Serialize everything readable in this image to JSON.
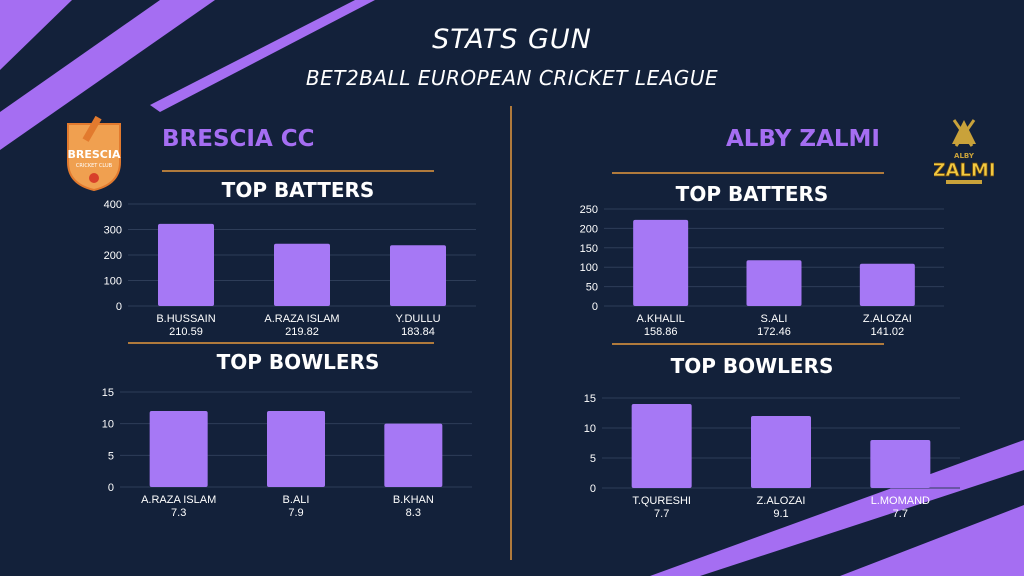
{
  "header": {
    "title": "STATS GUN",
    "subtitle": "BET2BALL EUROPEAN CRICKET LEAGUE"
  },
  "colors": {
    "background": "#13213a",
    "accent_purple": "#a56ef2",
    "bar": "#a678f5",
    "gold": "#b07a3c"
  },
  "teams": [
    {
      "name": "BRESCIA CC",
      "logo_text": "BRESCIA CRICKET CLUB",
      "logo_icon": "brescia-cricket-club-crest"
    },
    {
      "name": "ALBY ZALMI",
      "logo_text": "ALBY ZALMI",
      "logo_icon": "alby-zalmi-crest"
    }
  ],
  "chart_data": [
    {
      "type": "bar",
      "team": "BRESCIA CC",
      "title": "TOP BATTERS",
      "categories": [
        "B.HUSSAIN",
        "A.RAZA ISLAM",
        "Y.DULLU"
      ],
      "sublabels": [
        "210.59",
        "219.82",
        "183.84"
      ],
      "values": [
        322,
        244,
        238
      ],
      "ylim": [
        0,
        400
      ],
      "yticks": [
        0,
        100,
        200,
        300,
        400
      ],
      "grid": true,
      "legend": "none"
    },
    {
      "type": "bar",
      "team": "BRESCIA CC",
      "title": "TOP BOWLERS",
      "categories": [
        "A.RAZA ISLAM",
        "B.ALI",
        "B.KHAN"
      ],
      "sublabels": [
        "7.3",
        "7.9",
        "8.3"
      ],
      "values": [
        12,
        12,
        10
      ],
      "ylim": [
        0,
        15
      ],
      "yticks": [
        0,
        5,
        10,
        15
      ],
      "grid": true,
      "legend": "none"
    },
    {
      "type": "bar",
      "team": "ALBY ZALMI",
      "title": "TOP BATTERS",
      "categories": [
        "A.KHALIL",
        "S.ALI",
        "Z.ALOZAI"
      ],
      "sublabels": [
        "158.86",
        "172.46",
        "141.02"
      ],
      "values": [
        222,
        118,
        109
      ],
      "ylim": [
        0,
        250
      ],
      "yticks": [
        0,
        50,
        100,
        150,
        200,
        250
      ],
      "grid": true,
      "legend": "none"
    },
    {
      "type": "bar",
      "team": "ALBY ZALMI",
      "title": "TOP BOWLERS",
      "categories": [
        "T.QURESHI",
        "Z.ALOZAI",
        "L.MOMAND"
      ],
      "sublabels": [
        "7.7",
        "9.1",
        "7.7"
      ],
      "values": [
        14,
        12,
        8
      ],
      "ylim": [
        0,
        15
      ],
      "yticks": [
        0,
        5,
        10,
        15
      ],
      "grid": true,
      "legend": "none"
    }
  ]
}
